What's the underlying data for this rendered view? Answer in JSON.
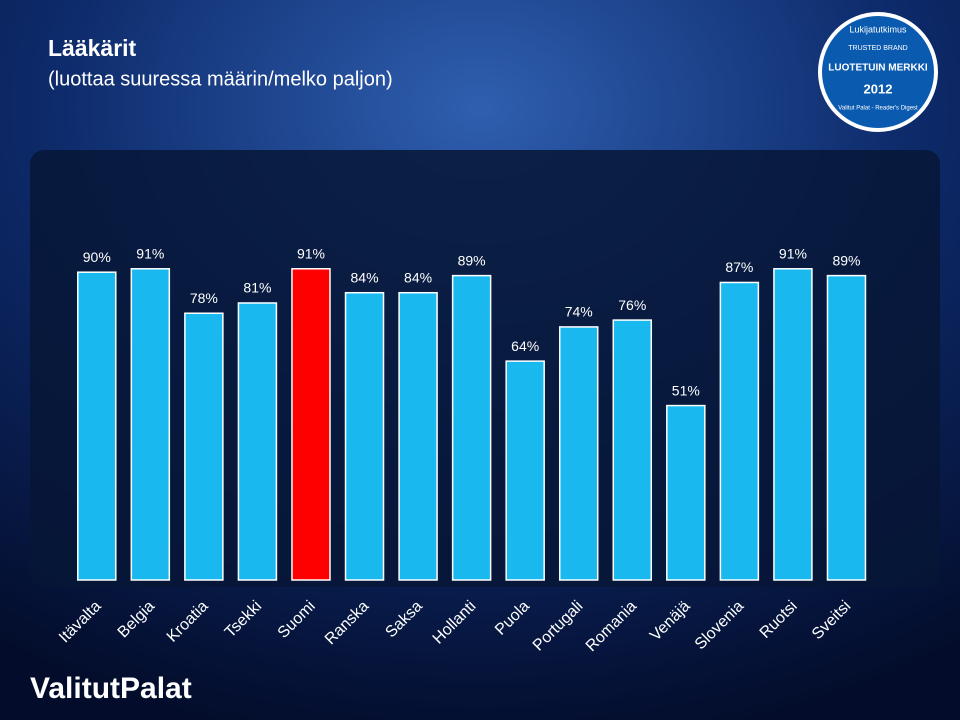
{
  "chart_data": {
    "type": "bar",
    "title": "Lääkärit",
    "subtitle": "(luottaa suuressa määrin/melko paljon)",
    "categories": [
      "Itävalta",
      "Belgia",
      "Kroatia",
      "Tsekki",
      "Suomi",
      "Ranska",
      "Saksa",
      "Hollanti",
      "Puola",
      "Portugali",
      "Romania",
      "Venäjä",
      "Slovenia",
      "Ruotsi",
      "Sveitsi"
    ],
    "values": [
      90,
      91,
      78,
      81,
      91,
      84,
      84,
      89,
      64,
      74,
      76,
      51,
      87,
      91,
      89
    ],
    "value_labels": [
      "90%",
      "91%",
      "78%",
      "81%",
      "91%",
      "84%",
      "84%",
      "89%",
      "64%",
      "74%",
      "76%",
      "51%",
      "87%",
      "91%",
      "89%"
    ],
    "colors": [
      "#19b9f0",
      "#19b9f0",
      "#19b9f0",
      "#19b9f0",
      "#ff0000",
      "#19b9f0",
      "#19b9f0",
      "#19b9f0",
      "#19b9f0",
      "#19b9f0",
      "#19b9f0",
      "#19b9f0",
      "#19b9f0",
      "#19b9f0",
      "#19b9f0"
    ],
    "ylim": [
      0,
      100
    ]
  },
  "logo": "ValitutPalat",
  "badge": {
    "top": "Lukijatutkimus",
    "brand": "TRUSTED BRAND",
    "main": "LUOTETUIN MERKKI",
    "year": "2012",
    "bottom": "Valitut Palat - Reader's Digest"
  }
}
